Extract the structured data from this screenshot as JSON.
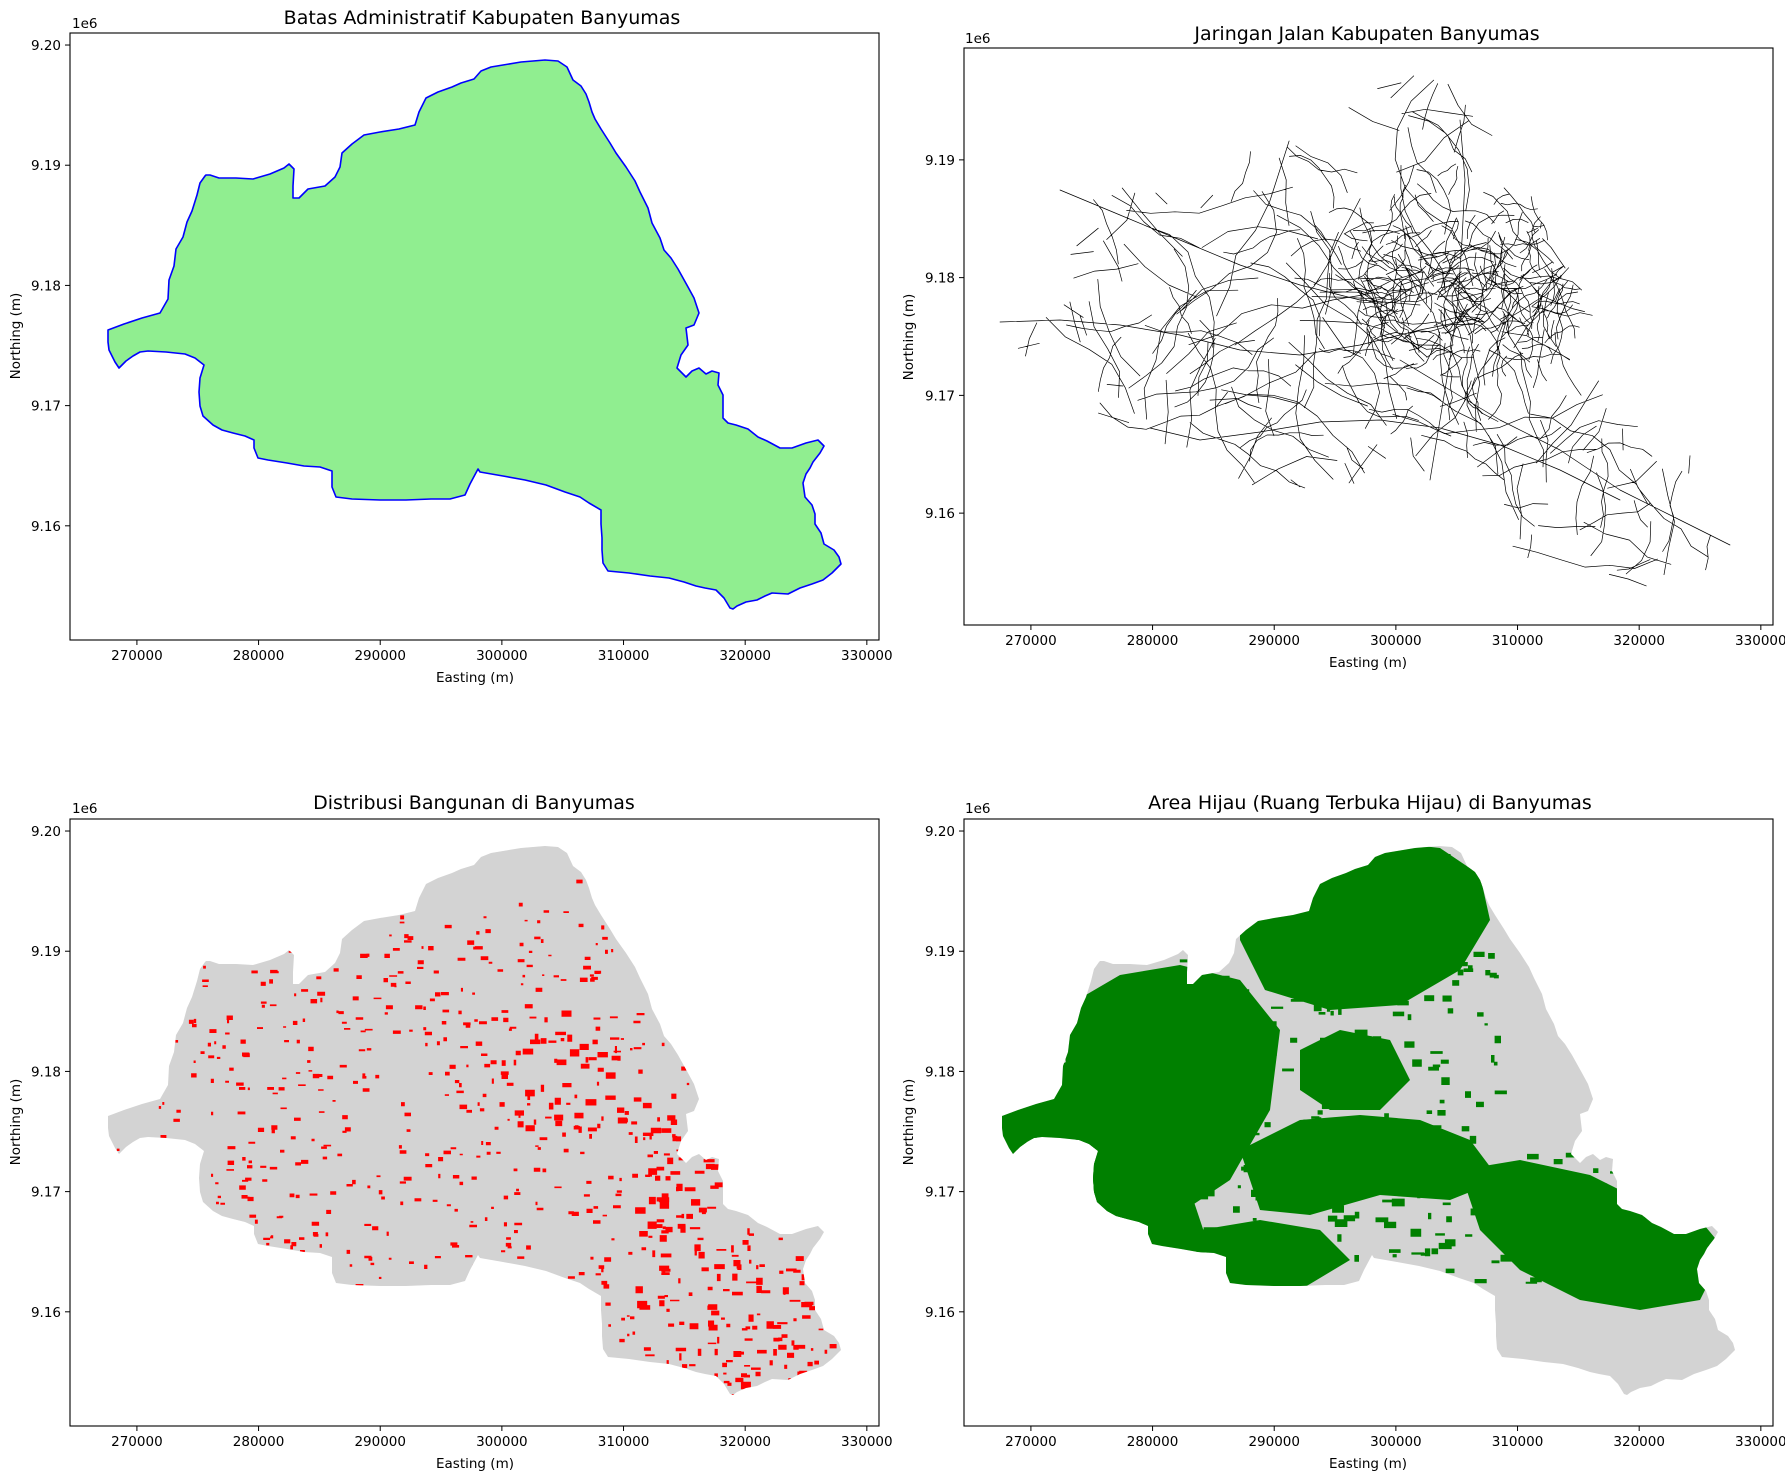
{
  "figure": {
    "panels": [
      {
        "id": "admin",
        "title": "Batas Administratif Kabupaten Banyumas",
        "xlabel": "Easting (m)",
        "ylabel": "Northing (m)",
        "offset_text": "1e6",
        "xlim": [
          264500,
          331000
        ],
        "ylim": [
          9150500,
          9201000
        ],
        "xticks": [
          "270000",
          "280000",
          "290000",
          "300000",
          "310000",
          "320000",
          "330000"
        ],
        "yticks": [
          "9.16",
          "9.17",
          "9.18",
          "9.19",
          "9.20"
        ],
        "layer": "boundary",
        "fill_color": "#90ee90",
        "edge_color": "#0000ff"
      },
      {
        "id": "roads",
        "title": "Jaringan Jalan Kabupaten Banyumas",
        "xlabel": "Easting (m)",
        "ylabel": "Northing (m)",
        "offset_text": "1e6",
        "xlim": [
          264500,
          331000
        ],
        "ylim": [
          9150500,
          9199500
        ],
        "xticks": [
          "270000",
          "280000",
          "290000",
          "300000",
          "310000",
          "320000",
          "330000"
        ],
        "yticks": [
          "9.16",
          "9.17",
          "9.18",
          "9.19"
        ],
        "layer": "roads",
        "line_color": "#000000"
      },
      {
        "id": "buildings",
        "title": "Distribusi Bangunan di Banyumas",
        "xlabel": "Easting (m)",
        "ylabel": "Northing (m)",
        "offset_text": "1e6",
        "xlim": [
          264500,
          331000
        ],
        "ylim": [
          9150500,
          9201000
        ],
        "xticks": [
          "270000",
          "280000",
          "290000",
          "300000",
          "310000",
          "320000",
          "330000"
        ],
        "yticks": [
          "9.16",
          "9.17",
          "9.18",
          "9.19",
          "9.20"
        ],
        "layer": "buildings",
        "base_color": "#d3d3d3",
        "feature_color": "#ff0000"
      },
      {
        "id": "green",
        "title": "Area Hijau (Ruang Terbuka Hijau) di Banyumas",
        "xlabel": "Easting (m)",
        "ylabel": "Northing (m)",
        "offset_text": "1e6",
        "xlim": [
          264500,
          331000
        ],
        "ylim": [
          9150500,
          9201000
        ],
        "xticks": [
          "270000",
          "280000",
          "290000",
          "300000",
          "310000",
          "320000",
          "330000"
        ],
        "yticks": [
          "9.16",
          "9.17",
          "9.18",
          "9.19",
          "9.20"
        ],
        "layer": "green",
        "base_color": "#d3d3d3",
        "feature_color": "#008000"
      }
    ]
  }
}
